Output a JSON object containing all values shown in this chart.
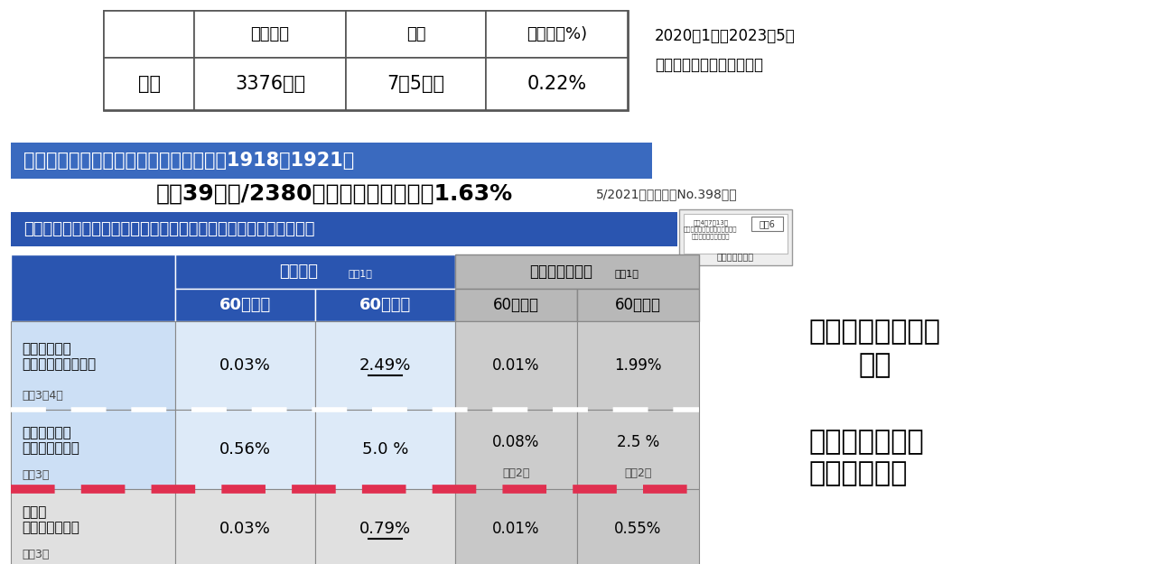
{
  "bg_color": "#ffffff",
  "top_table": {
    "headers": [
      "",
      "感染者数",
      "死亡",
      "致死率（%)"
    ],
    "row": [
      "日本",
      "3376万人",
      "7万5千人",
      "0.22%"
    ],
    "note_line1": "2020年1月〜2023年5月",
    "note_line2": "厚労省データ（梶原計算）"
  },
  "spain_banner": {
    "text": "スペイン風邪の国内感染者数と死者数（1918〜1921）",
    "bg_color": "#3a6abf",
    "text_color": "#ffffff"
  },
  "spain_main": "死者39万人/2380万人感染者＝致死率1.63%",
  "spain_sub": "5/2021　複十字　No.398より",
  "corona_banner": {
    "text": "新型コロナウイルスと季節性インフルエンザの重症化率等について",
    "bg_color": "#2a55b0",
    "text_color": "#ffffff"
  },
  "right_text1_line1": "マスク・手洗いの",
  "right_text1_line2": "推奨",
  "right_text2_line1": "高齢者で高い重",
  "right_text2_line2": "症化、致死率",
  "table": {
    "severe_header": "重症化率",
    "severe_note": "（注1）",
    "ref_header": "（参考）致死率",
    "ref_note": "（注1）",
    "col_under60": "60歳未満",
    "col_over60": "60歳以上",
    "blue_hdr_bg": "#2a55b0",
    "ref_hdr_bg": "#b8b8b8",
    "row1_label_line1": "新型コロナ・",
    "row1_label_line2": "オミクロン株流行期",
    "row1_label_note": "（注3、4）",
    "row1_s60under": "0.03%",
    "row1_s60over": "2.49%",
    "row1_r60under": "0.01%",
    "row1_r60over": "1.99%",
    "row2_label_line1": "新型コロナ・",
    "row2_label_line2": "デルタ株流行期",
    "row2_label_note": "（注3）",
    "row2_s60under": "0.56%",
    "row2_s60over": "5.0 %",
    "row2_r60under": "0.08%",
    "row2_r60under_note": "（注2）",
    "row2_r60over": "2.5 %",
    "row2_r60over_note": "（注2）",
    "row3_label_line1": "季節性",
    "row3_label_line2": "インフルエンザ",
    "row3_label_note": "（注3）",
    "row3_s60under": "0.03%",
    "row3_s60over": "0.79%",
    "row3_r60under": "0.01%",
    "row3_r60over": "0.55%",
    "light_blue_bg": "#ccdff5",
    "light_blue_bg2": "#ddeaf8",
    "gray_bg": "#e0e0e0",
    "ref_gray_bg": "#cccccc",
    "ref_gray_bg2": "#c8c8c8",
    "border_color": "#888888"
  },
  "colors": {
    "dashed_red": "#e03050",
    "dashed_white": "#ffffff"
  }
}
